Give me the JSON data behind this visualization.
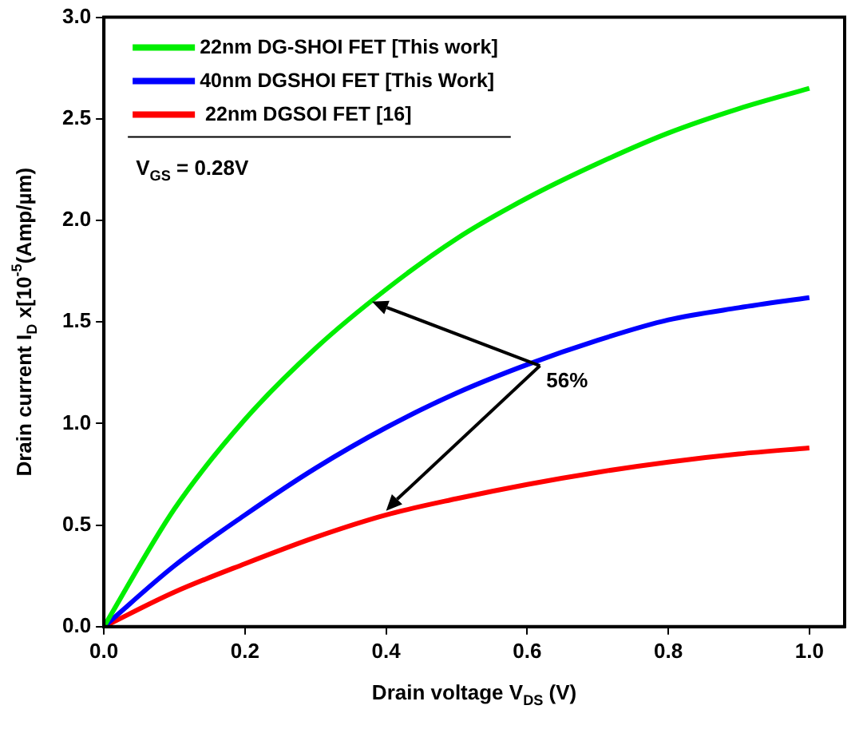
{
  "chart_data": {
    "type": "line",
    "xlabel": "Drain voltage V$_{DS}$ (V)",
    "ylabel": "Drain current I$_{D}$ x[10$^{-5}$(Amp/µm)",
    "x": [
      0,
      0.1,
      0.2,
      0.3,
      0.4,
      0.5,
      0.6,
      0.7,
      0.8,
      0.9,
      1.0
    ],
    "series": [
      {
        "name": "22nm DG-SHOI FET [This work]",
        "color": "#00ee00",
        "values": [
          0,
          0.58,
          1.02,
          1.37,
          1.66,
          1.91,
          2.11,
          2.28,
          2.43,
          2.55,
          2.65
        ]
      },
      {
        "name": "40nm DGSHOI FET [This Work]",
        "color": "#0000ff",
        "values": [
          0,
          0.3,
          0.55,
          0.78,
          0.98,
          1.15,
          1.29,
          1.41,
          1.51,
          1.57,
          1.62
        ]
      },
      {
        "name": " 22nm DGSOI FET [16]",
        "color": "#ff0000",
        "values": [
          0,
          0.17,
          0.31,
          0.44,
          0.55,
          0.63,
          0.7,
          0.76,
          0.81,
          0.85,
          0.88
        ]
      }
    ],
    "xlim": [
      0,
      1.05
    ],
    "xticks": [
      {
        "value": 0,
        "label": "0.0"
      },
      0.2,
      0.4,
      0.6,
      0.8,
      {
        "value": 1,
        "label": "1.0"
      }
    ],
    "ylim": [
      0,
      3
    ],
    "yticks": [
      {
        "value": 0,
        "label": "0.0"
      },
      0.5,
      {
        "value": 1,
        "label": "1.0"
      },
      1.5,
      {
        "value": 2,
        "label": "2.0"
      },
      2.5,
      {
        "value": 3,
        "label": "3.0"
      }
    ],
    "annotations": [
      "V$_{GS}$ = 0.28V",
      {
        "text": "56%",
        "x": 0.6,
        "y": 1.3
      }
    ],
    "legend": "top left",
    "grid": false,
    "marker": "none",
    "line_style": "solid"
  }
}
